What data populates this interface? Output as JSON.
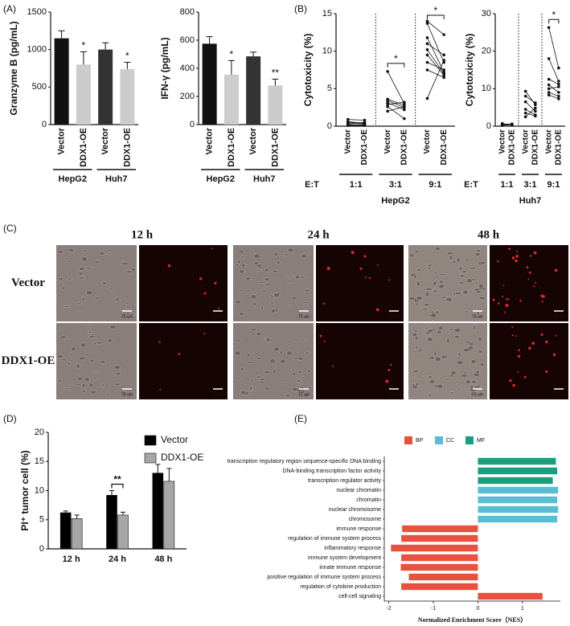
{
  "panel_labels": [
    "(A)",
    "(B)",
    "(C)",
    "(D)",
    "(E)"
  ],
  "chart_data": [
    {
      "type": "bar",
      "ylabel": "Granzyme B (pg/mL)",
      "categories": [
        "Vector",
        "DDX1-OE",
        "Vector",
        "DDX1-OE"
      ],
      "group_labels": [
        "HepG2",
        "Huh7"
      ],
      "values": [
        1150,
        800,
        1000,
        740
      ],
      "errors": [
        100,
        170,
        90,
        90
      ],
      "colors": [
        "#111111",
        "#cccccc",
        "#333333",
        "#cccccc"
      ],
      "significance": [
        null,
        "*",
        null,
        "*"
      ],
      "ylim": [
        0,
        1500
      ],
      "yticks": [
        0,
        500,
        1000,
        1500
      ]
    },
    {
      "type": "bar",
      "ylabel": "IFN-γ (pg/mL)",
      "categories": [
        "Vector",
        "DDX1-OE",
        "Vector",
        "DDX1-OE"
      ],
      "group_labels": [
        "HepG2",
        "Huh7"
      ],
      "values": [
        575,
        355,
        485,
        278
      ],
      "errors": [
        50,
        100,
        30,
        45
      ],
      "colors": [
        "#111111",
        "#cccccc",
        "#333333",
        "#cccccc"
      ],
      "significance": [
        null,
        "*",
        null,
        "**"
      ],
      "ylim": [
        0,
        800
      ],
      "yticks": [
        0,
        200,
        400,
        600,
        800
      ]
    },
    {
      "type": "paired",
      "title": "HepG2",
      "ylabel": "Cytotoxicity (%)",
      "xlabel": "E:T",
      "categories": [
        "Vector",
        "DDX1-OE"
      ],
      "ylim": [
        0,
        15
      ],
      "yticks": [
        0,
        5,
        10,
        15
      ],
      "groups": [
        {
          "name": "1:1",
          "series": [
            [
              0.6,
              0.9,
              0.3,
              0.5,
              0.2,
              0.1
            ],
            [
              0.4,
              0.8,
              0.5,
              0.3,
              0.2,
              0.1
            ]
          ],
          "significance": null
        },
        {
          "name": "3:1",
          "series": [
            [
              7.3,
              3.6,
              3.4,
              3.1,
              2.9,
              2.6,
              2.0
            ],
            [
              3.0,
              2.8,
              2.5,
              2.2,
              3.2,
              1.0,
              2.6
            ]
          ],
          "significance": "*"
        },
        {
          "name": "9:1",
          "series": [
            [
              14.0,
              13.7,
              11.8,
              11.0,
              10.2,
              9.5,
              8.5,
              7.5,
              3.7
            ],
            [
              12.2,
              8.5,
              7.2,
              9.5,
              7.0,
              6.8,
              7.5,
              6.5,
              8.8
            ]
          ],
          "significance": "*"
        }
      ]
    },
    {
      "type": "paired",
      "title": "Huh7",
      "ylabel": "Cytotoxicity (%)",
      "xlabel": "E:T",
      "categories": [
        "Vector",
        "DDX1-OE"
      ],
      "ylim": [
        0,
        30
      ],
      "yticks": [
        0,
        10,
        20,
        30
      ],
      "groups": [
        {
          "name": "1:1",
          "series": [
            [
              0.5,
              0.3,
              0.7,
              0.2
            ],
            [
              0.6,
              0.4,
              0.3,
              0.5
            ]
          ],
          "significance": null
        },
        {
          "name": "3:1",
          "series": [
            [
              9.3,
              8.0,
              6.5,
              4.5,
              3.5,
              2.5
            ],
            [
              5.7,
              6.2,
              4.0,
              3.0,
              2.7,
              4.8
            ]
          ],
          "significance": null
        },
        {
          "name": "9:1",
          "series": [
            [
              26.3,
              18.0,
              12.5,
              11.0,
              10.0,
              9.0,
              8.3
            ],
            [
              15.5,
              12.0,
              11.2,
              9.0,
              10.5,
              8.0,
              7.3
            ]
          ],
          "significance": "*"
        }
      ]
    },
    {
      "type": "bar",
      "ylabel": "PI⁺ tumor cell (%)",
      "categories": [
        "12 h",
        "24 h",
        "48 h"
      ],
      "series": [
        {
          "name": "Vector",
          "color": "#000000",
          "values": [
            6.2,
            9.2,
            13.0
          ],
          "errors": [
            0.3,
            0.8,
            1.5
          ]
        },
        {
          "name": "DDX1-OE",
          "color": "#a6a6a6",
          "values": [
            5.2,
            5.8,
            11.6
          ],
          "errors": [
            0.6,
            0.5,
            2.2
          ]
        }
      ],
      "significance": [
        null,
        "**",
        null
      ],
      "ylim": [
        0,
        20
      ],
      "yticks": [
        0,
        5,
        10,
        15,
        20
      ]
    },
    {
      "type": "barh",
      "xlabel": "Normalized Enrichment Score（NES）",
      "legend": [
        {
          "name": "BP",
          "color": "#e8513f"
        },
        {
          "name": "CC",
          "color": "#5bbcd6"
        },
        {
          "name": "MF",
          "color": "#1a9e80"
        }
      ],
      "categories": [
        "transcription regulatory region sequence-specific DNA binding",
        "DNA-binding transcription factor activity",
        "transcription regulator activity",
        "nuclear chromatin",
        "chromatin",
        "nuclear chromosome",
        "chromosome",
        "immune response",
        "regulation of immune system process",
        "inflammatory response",
        "immune system development",
        "innate immune response",
        "positive regulation of immune system process",
        "regulation of cytokine production",
        "cell-cell signaling"
      ],
      "groups": [
        "MF",
        "MF",
        "MF",
        "CC",
        "CC",
        "CC",
        "CC",
        "BP",
        "BP",
        "BP",
        "BP",
        "BP",
        "BP",
        "BP",
        "BP"
      ],
      "values": [
        1.75,
        1.78,
        1.68,
        1.8,
        1.78,
        1.8,
        1.78,
        -1.7,
        -1.72,
        -1.95,
        -1.72,
        -1.73,
        -1.55,
        -1.72,
        1.45
      ],
      "xlim": [
        -2.1,
        1.85
      ],
      "xticks": [
        -2,
        -1,
        0,
        1
      ]
    }
  ],
  "image_grid": {
    "columns": [
      "12 h",
      "24 h",
      "48 h"
    ],
    "rows": [
      "Vector",
      "DDX1-OE"
    ],
    "scale_bar": "75 um"
  }
}
